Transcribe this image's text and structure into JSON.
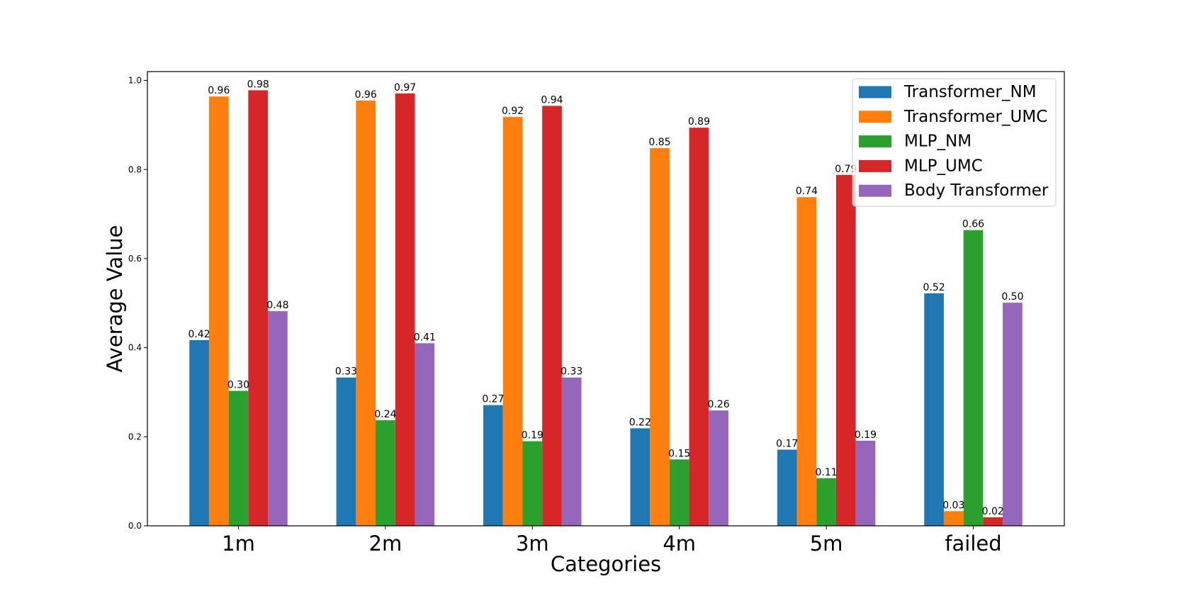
{
  "chart_data": {
    "type": "bar",
    "title": "",
    "xlabel": "Categories",
    "ylabel": "Average Value",
    "categories": [
      "1m",
      "2m",
      "3m",
      "4m",
      "5m",
      "failed"
    ],
    "ylim": [
      0,
      1.02
    ],
    "yticks": [
      "0.0",
      "0.2",
      "0.4",
      "0.6",
      "0.8",
      "1.0"
    ],
    "legend_position": "top-right",
    "grid": false,
    "series": [
      {
        "name": "Transformer_NM",
        "color": "#1f77b4",
        "values": [
          0.417,
          0.333,
          0.271,
          0.219,
          0.171,
          0.522
        ],
        "labels": [
          "0.42",
          "0.33",
          "0.27",
          "0.22",
          "0.17",
          "0.52"
        ]
      },
      {
        "name": "Transformer_UMC",
        "color": "#ff7f0e",
        "values": [
          0.964,
          0.955,
          0.918,
          0.848,
          0.738,
          0.033
        ],
        "labels": [
          "0.96",
          "0.96",
          "0.92",
          "0.85",
          "0.74",
          "0.03"
        ]
      },
      {
        "name": "MLP_NM",
        "color": "#2ca02c",
        "values": [
          0.303,
          0.237,
          0.19,
          0.149,
          0.107,
          0.664
        ],
        "labels": [
          "0.30",
          "0.24",
          "0.19",
          "0.15",
          "0.11",
          "0.66"
        ]
      },
      {
        "name": "MLP_UMC",
        "color": "#d62728",
        "values": [
          0.978,
          0.971,
          0.943,
          0.894,
          0.788,
          0.019
        ],
        "labels": [
          "0.98",
          "0.97",
          "0.94",
          "0.89",
          "0.79",
          "0.02"
        ]
      },
      {
        "name": "Body Transformer",
        "color": "#9467bd",
        "values": [
          0.482,
          0.41,
          0.333,
          0.259,
          0.191,
          0.501
        ],
        "labels": [
          "0.48",
          "0.41",
          "0.33",
          "0.26",
          "0.19",
          "0.50"
        ]
      }
    ]
  }
}
